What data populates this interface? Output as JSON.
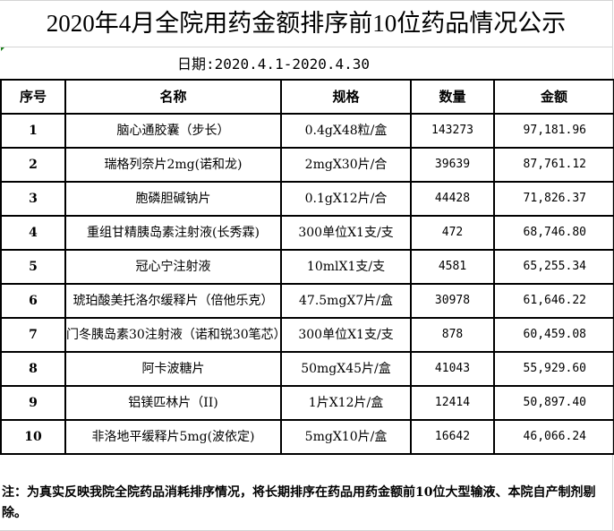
{
  "title": "2020年4月全院用药金额排序前10位药品情况公示",
  "date": "日期:2020.4.1-2020.4.30",
  "headers": [
    "序号",
    "名称",
    "规格",
    "数量",
    "金额"
  ],
  "rows": [
    {
      "no": "1",
      "name": "脑心通胶囊（步长）",
      "spec": "0.4gX48粒/盒",
      "qty": "143273",
      "amount": "97,181.96"
    },
    {
      "no": "2",
      "name": "瑞格列奈片2mg(诺和龙)",
      "spec": "2mgX30片/合",
      "qty": "39639",
      "amount": "87,761.12"
    },
    {
      "no": "3",
      "name": "胞磷胆碱钠片",
      "spec": "0.1gX12片/合",
      "qty": "44428",
      "amount": "71,826.37"
    },
    {
      "no": "4",
      "name": "重组甘精胰岛素注射液(长秀霖)",
      "spec": "300单位X1支/支",
      "qty": "472",
      "amount": "68,746.80"
    },
    {
      "no": "5",
      "name": "冠心宁注射液",
      "spec": "10mlX1支/支",
      "qty": "4581",
      "amount": "65,255.34"
    },
    {
      "no": "6",
      "name": "琥珀酸美托洛尔缓释片（倍他乐克）",
      "spec": "47.5mgX7片/盒",
      "qty": "30978",
      "amount": "61,646.22"
    },
    {
      "no": "7",
      "name": "门冬胰岛素30注射液（诺和锐30笔芯）",
      "spec": "300单位X1支/支",
      "qty": "878",
      "amount": "60,459.08"
    },
    {
      "no": "8",
      "name": "阿卡波糖片",
      "spec": "50mgX45片/盒",
      "qty": "41043",
      "amount": "55,929.60"
    },
    {
      "no": "9",
      "name": "铝镁匹林片（II)",
      "spec": "1片X12片/盒",
      "qty": "12414",
      "amount": "50,897.40"
    },
    {
      "no": "10",
      "name": "非洛地平缓释片5mg(波依定)",
      "spec": "5mgX10片/盒",
      "qty": "16642",
      "amount": "46,066.24"
    }
  ],
  "note": "注：为真实反映我院全院药品消耗排序情况，将长期排序在药品用药金额前10位大型输液、本院自产制剂剔除。"
}
